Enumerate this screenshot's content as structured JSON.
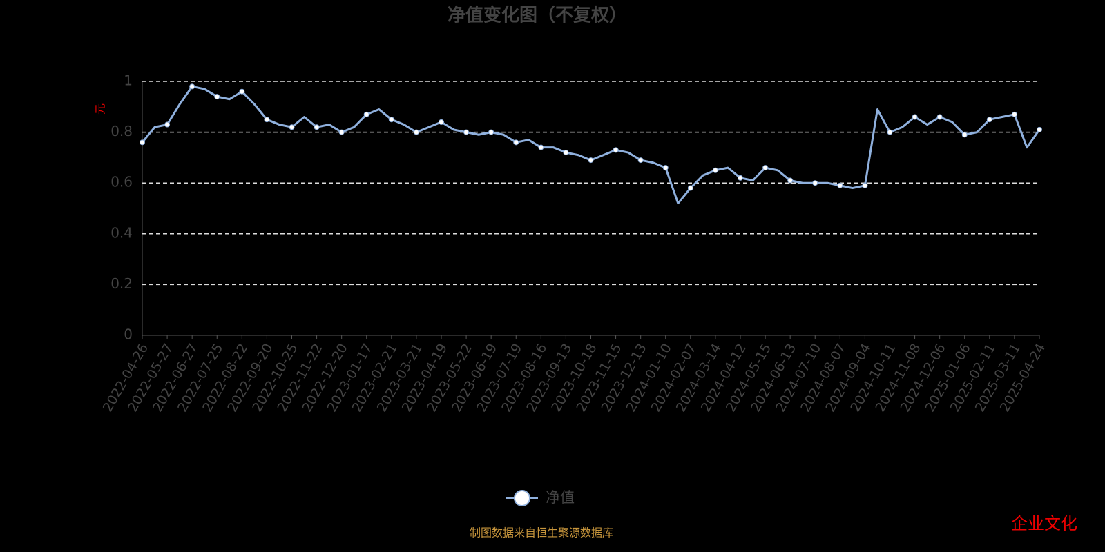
{
  "chart_data": {
    "type": "line",
    "title": "净值变化图（不复权）",
    "y_label": "元",
    "categories": [
      "2022-04-26",
      null,
      "2022-05-27",
      null,
      "2022-06-27",
      null,
      "2022-07-25",
      null,
      "2022-08-22",
      null,
      "2022-09-20",
      null,
      "2022-10-25",
      null,
      "2022-11-22",
      null,
      "2022-12-20",
      null,
      "2023-01-17",
      null,
      "2023-02-21",
      null,
      "2023-03-21",
      null,
      "2023-04-19",
      null,
      "2023-05-22",
      null,
      "2023-06-19",
      null,
      "2023-07-19",
      null,
      "2023-08-16",
      null,
      "2023-09-13",
      null,
      "2023-10-18",
      null,
      "2023-11-15",
      null,
      "2023-12-13",
      null,
      "2024-01-10",
      null,
      "2024-02-07",
      null,
      "2024-03-14",
      null,
      "2024-04-12",
      null,
      "2024-05-15",
      null,
      "2024-06-13",
      null,
      "2024-07-10",
      null,
      "2024-08-07",
      null,
      "2024-09-04",
      null,
      "2024-10-11",
      null,
      "2024-11-08",
      null,
      "2024-12-06",
      null,
      "2025-01-06",
      null,
      "2025-02-11",
      null,
      "2025-03-11",
      null,
      "2025-04-24"
    ],
    "series": [
      {
        "name": "净值",
        "color": "#8fb0dd",
        "values": [
          0.76,
          0.82,
          0.83,
          0.91,
          0.98,
          0.97,
          0.94,
          0.93,
          0.96,
          0.91,
          0.85,
          0.83,
          0.82,
          0.86,
          0.82,
          0.83,
          0.8,
          0.82,
          0.87,
          0.89,
          0.85,
          0.83,
          0.8,
          0.82,
          0.84,
          0.81,
          0.8,
          0.79,
          0.8,
          0.79,
          0.76,
          0.77,
          0.74,
          0.74,
          0.72,
          0.71,
          0.69,
          0.71,
          0.73,
          0.72,
          0.69,
          0.68,
          0.66,
          0.52,
          0.58,
          0.63,
          0.65,
          0.66,
          0.62,
          0.61,
          0.66,
          0.65,
          0.61,
          0.6,
          0.6,
          0.6,
          0.59,
          0.58,
          0.59,
          0.89,
          0.8,
          0.82,
          0.86,
          0.83,
          0.86,
          0.84,
          0.79,
          0.8,
          0.85,
          0.86,
          0.87,
          0.74,
          0.81
        ]
      }
    ],
    "ylim": [
      0,
      1
    ],
    "yticks": [
      0,
      0.2,
      0.4,
      0.6,
      0.8,
      1
    ],
    "grid": true,
    "source": "制图数据来自恒生聚源数据库",
    "watermark": "企业文化"
  }
}
